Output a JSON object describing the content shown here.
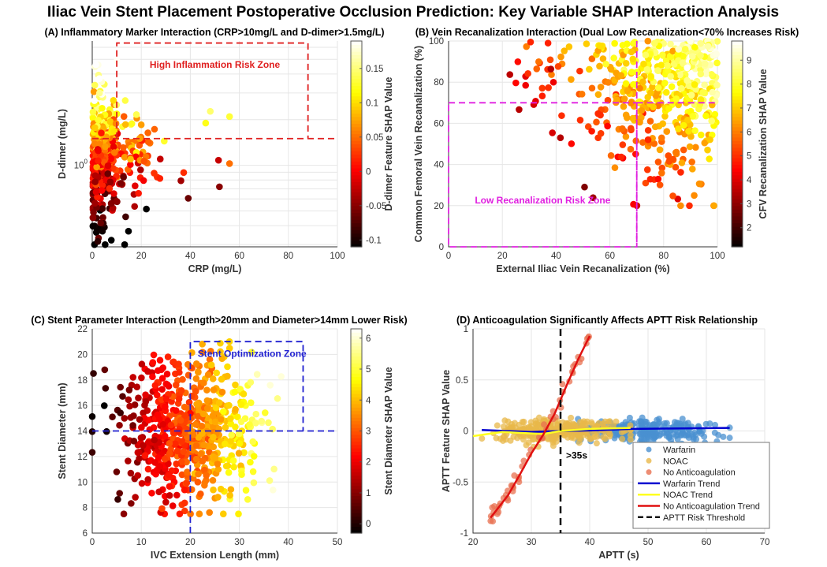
{
  "title": "Iliac Vein Stent Placement Postoperative Occlusion Prediction: Key Variable SHAP Interaction Analysis",
  "chart_data": [
    {
      "id": "A",
      "type": "scatter",
      "title": "(A) Inflammatory Marker Interaction (CRP>10mg/L and D-dimer>1.5mg/L)",
      "xlabel": "CRP (mg/L)",
      "ylabel": "D-dimer (mg/L)",
      "xlim": [
        0,
        100
      ],
      "ylim": [
        0.29,
        6.6
      ],
      "yscale": "log",
      "xticks": [
        "0",
        "20",
        "40",
        "60",
        "80",
        "100"
      ],
      "yticks": [
        {
          "v": 1,
          "label": "10",
          "sup": "0"
        }
      ],
      "colorbar": {
        "label": "D-dimer Feature SHAP Value",
        "lim": [
          -0.11,
          0.19
        ],
        "ticks": [
          "-0.1",
          "-0.05",
          "0",
          "0.05",
          "0.1",
          "0.15"
        ],
        "colormap": "hot"
      },
      "zone": {
        "label": "High Inflammation Risk Zone",
        "x": [
          10,
          88
        ],
        "y": [
          1.5,
          6.4
        ],
        "color": "#e02020"
      },
      "points": {
        "n": 420,
        "x_mean": 6,
        "x_max": 56,
        "log10y_mean": 0.05,
        "log10y_sd": 0.22,
        "seed": 11
      }
    },
    {
      "id": "B",
      "type": "scatter",
      "title": "(B) Vein Recanalization Interaction (Dual Low Recanalization<70% Increases Risk)",
      "xlabel": "External Iliac Vein Recanalization (%)",
      "ylabel": "Common Femoral Vein Recanalization (%)",
      "xlim": [
        0,
        100
      ],
      "ylim": [
        0,
        100
      ],
      "xticks": [
        "0",
        "20",
        "40",
        "60",
        "80",
        "100"
      ],
      "yticks": [
        "0",
        "20",
        "40",
        "60",
        "80",
        "100"
      ],
      "colorbar": {
        "label": "CFV Recanalization SHAP Value",
        "lim": [
          1.2,
          9.8
        ],
        "ticks": [
          "2",
          "3",
          "4",
          "5",
          "6",
          "7",
          "8",
          "9"
        ],
        "colormap": "hot"
      },
      "zone": {
        "label": "Low Recanalization Risk Zone",
        "x": [
          0,
          70
        ],
        "y": [
          0,
          70
        ],
        "color": "#e020e0"
      },
      "points": {
        "n": 520,
        "seed": 23
      }
    },
    {
      "id": "C",
      "type": "scatter",
      "title": "(C) Stent Parameter Interaction (Length>20mm and Diameter>14mm Lower Risk)",
      "xlabel": "IVC Extension Length (mm)",
      "ylabel": "Stent Diameter (mm)",
      "xlim": [
        0,
        50
      ],
      "ylim": [
        6,
        22
      ],
      "xticks": [
        "0",
        "10",
        "20",
        "30",
        "40",
        "50"
      ],
      "yticks": [
        "6",
        "8",
        "10",
        "12",
        "14",
        "16",
        "18",
        "20",
        "22"
      ],
      "colorbar": {
        "label": "Stent Diameter SHAP Value",
        "lim": [
          -0.3,
          6.3
        ],
        "ticks": [
          "0",
          "1",
          "2",
          "3",
          "4",
          "5",
          "6"
        ],
        "colormap": "hot"
      },
      "zone": {
        "label": "Stent Optimization Zone",
        "x": [
          20,
          43
        ],
        "y": [
          14,
          21
        ],
        "color": "#2020d0"
      },
      "points": {
        "n": 620,
        "x_mean": 20,
        "x_sd": 7,
        "y_mean": 14,
        "y_sd": 2.8,
        "seed": 37
      }
    },
    {
      "id": "D",
      "type": "scatter",
      "title": "(D) Anticoagulation Significantly Affects APTT Risk Relationship",
      "xlabel": "APTT (s)",
      "ylabel": "APTT Feature SHAP Value",
      "xlim": [
        20,
        70
      ],
      "ylim": [
        -1,
        1
      ],
      "xticks": [
        "20",
        "30",
        "40",
        "50",
        "60",
        "70"
      ],
      "yticks": [
        "-1",
        "-0.5",
        "0",
        "0.5",
        "1"
      ],
      "threshold": {
        "x": 35,
        "label": ">35s"
      },
      "series": [
        {
          "name": "Warfarin",
          "color": "#4a90d0",
          "x_range": [
            38,
            64
          ],
          "n": 260,
          "seed": 5
        },
        {
          "name": "NOAC",
          "color": "#e8b84a",
          "x_range": [
            21,
            47
          ],
          "n": 300,
          "seed": 7
        },
        {
          "name": "No Anticoagulation",
          "color": "#e87050",
          "x_range": [
            23,
            40
          ],
          "n": 55,
          "seed": 9
        }
      ],
      "trends": [
        {
          "name": "Warfarin Trend",
          "color": "#0000d0",
          "points": [
            [
              21.5,
              0.01
            ],
            [
              30,
              -0.01
            ],
            [
              35,
              0
            ],
            [
              40,
              0.005
            ],
            [
              47,
              0.02
            ],
            [
              64,
              0.03
            ]
          ]
        },
        {
          "name": "NOAC Trend",
          "color": "#ffff20",
          "points": [
            [
              20,
              -0.05
            ],
            [
              25,
              -0.01
            ],
            [
              32,
              -0.03
            ],
            [
              35,
              0
            ],
            [
              40,
              0.02
            ],
            [
              47,
              0.03
            ]
          ]
        },
        {
          "name": "No Anticoagulation Trend",
          "color": "#e01010",
          "points": [
            [
              23,
              -0.85
            ],
            [
              26,
              -0.63
            ],
            [
              28,
              -0.43
            ],
            [
              30,
              -0.22
            ],
            [
              32,
              -0.04
            ],
            [
              34,
              0.17
            ],
            [
              36,
              0.44
            ],
            [
              38,
              0.7
            ],
            [
              40,
              0.93
            ]
          ]
        }
      ],
      "legend_threshold": "APTT Risk Threshold",
      "legend_position": "bottom-right"
    }
  ]
}
